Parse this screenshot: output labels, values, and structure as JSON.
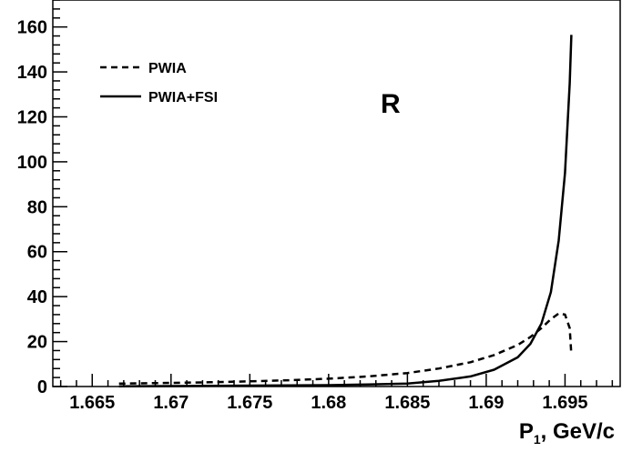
{
  "chart_data": {
    "type": "line",
    "xlabel_main": "P",
    "xlabel_sub": "1",
    "xlabel_rest": ", GeV/c",
    "ylabel": "",
    "annotation": "R",
    "xlim": [
      1.6625,
      1.6985
    ],
    "ylim": [
      0,
      172
    ],
    "x_ticks": [
      1.665,
      1.67,
      1.675,
      1.68,
      1.685,
      1.69,
      1.695
    ],
    "x_tick_labels": [
      "1.665",
      "1.67",
      "1.675",
      "1.68",
      "1.685",
      "1.69",
      "1.695"
    ],
    "y_ticks": [
      0,
      20,
      40,
      60,
      80,
      100,
      120,
      140,
      160
    ],
    "y_tick_labels": [
      "0",
      "20",
      "40",
      "60",
      "80",
      "100",
      "120",
      "140",
      "160"
    ],
    "legend_position": "top-left",
    "series": [
      {
        "name": "PWIA",
        "style": "dashed",
        "color": "#000000",
        "x": [
          1.6667,
          1.67,
          1.6725,
          1.675,
          1.6775,
          1.68,
          1.6825,
          1.685,
          1.687,
          1.689,
          1.6905,
          1.692,
          1.6928,
          1.6935,
          1.6941,
          1.6946,
          1.695,
          1.6953,
          1.6954
        ],
        "values": [
          1.3,
          1.6,
          1.9,
          2.3,
          2.8,
          3.5,
          4.5,
          6.0,
          8.0,
          10.8,
          14.0,
          18.5,
          22.0,
          26.0,
          30.0,
          32.5,
          32.0,
          26.0,
          14.0
        ]
      },
      {
        "name": "PWIA+FSI",
        "style": "solid",
        "color": "#000000",
        "x": [
          1.6667,
          1.67,
          1.675,
          1.68,
          1.6825,
          1.685,
          1.687,
          1.689,
          1.6905,
          1.692,
          1.6928,
          1.6935,
          1.6941,
          1.6946,
          1.695,
          1.6953,
          1.6954
        ],
        "values": [
          0.1,
          0.2,
          0.4,
          0.6,
          0.9,
          1.3,
          2.5,
          4.5,
          7.5,
          13.0,
          19.0,
          28.0,
          42.0,
          65.0,
          95.0,
          135.0,
          156.5
        ]
      }
    ]
  }
}
